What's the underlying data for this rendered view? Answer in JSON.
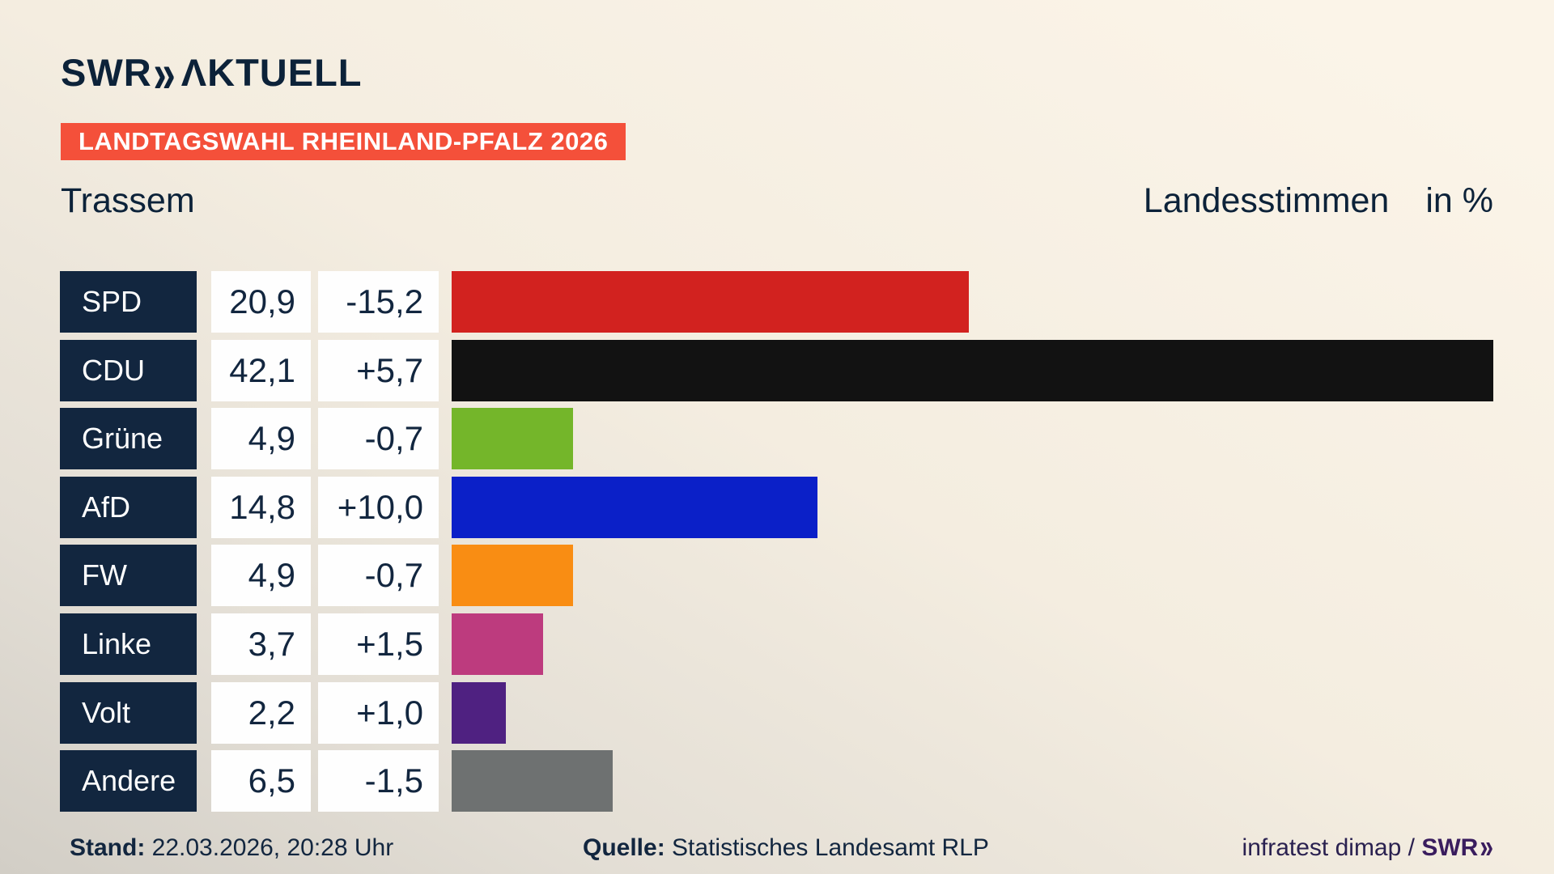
{
  "header": {
    "logo_swr": "SWR",
    "logo_chevrons": "»",
    "logo_aktuell": "ΛKTUELL",
    "badge": "LANDTAGSWAHL RHEINLAND-PFALZ 2026",
    "municipality": "Trassem",
    "measure_label": "Landesstimmen",
    "unit_label": "in %"
  },
  "chart_data": {
    "type": "bar",
    "orientation": "horizontal",
    "title": "Trassem",
    "subtitle": "Landesstimmen in %",
    "xlim": [
      0,
      42.1
    ],
    "grid": false,
    "legend": "none",
    "categories": [
      "SPD",
      "CDU",
      "Grüne",
      "AfD",
      "FW",
      "Linke",
      "Volt",
      "Andere"
    ],
    "values": [
      20.9,
      42.1,
      4.9,
      14.8,
      4.9,
      3.7,
      2.2,
      6.5
    ],
    "diffs": [
      -15.2,
      5.7,
      -0.7,
      10.0,
      -0.7,
      1.5,
      1.0,
      -1.5
    ],
    "rows": [
      {
        "party": "SPD",
        "value": 20.9,
        "value_label": "20,9",
        "diff_label": "-15,2",
        "color": "#d2221f"
      },
      {
        "party": "CDU",
        "value": 42.1,
        "value_label": "42,1",
        "diff_label": "+5,7",
        "color": "#121212"
      },
      {
        "party": "Grüne",
        "value": 4.9,
        "value_label": "4,9",
        "diff_label": "-0,7",
        "color": "#74b62a"
      },
      {
        "party": "AfD",
        "value": 14.8,
        "value_label": "14,8",
        "diff_label": "+10,0",
        "color": "#0b20c8"
      },
      {
        "party": "FW",
        "value": 4.9,
        "value_label": "4,9",
        "diff_label": "-0,7",
        "color": "#f98d13"
      },
      {
        "party": "Linke",
        "value": 3.7,
        "value_label": "3,7",
        "diff_label": "+1,5",
        "color": "#bd3b7e"
      },
      {
        "party": "Volt",
        "value": 2.2,
        "value_label": "2,2",
        "diff_label": "+1,0",
        "color": "#4f2181"
      },
      {
        "party": "Andere",
        "value": 6.5,
        "value_label": "6,5",
        "diff_label": "-1,5",
        "color": "#6e7171"
      }
    ]
  },
  "footer": {
    "stand_label": "Stand:",
    "stand_value": " 22.03.2026, 20:28 Uhr",
    "source_label": "Quelle:",
    "source_value": " Statistisches Landesamt RLP",
    "credit_text": "infratest dimap / ",
    "credit_brand_swr": "SWR",
    "credit_brand_chevrons": "»"
  },
  "colors": {
    "navy_box": "#12263f",
    "navy_text": "#0c2239",
    "badge_red": "#f4503a",
    "cell_white": "#fefefe",
    "background_light": "#faf3e7",
    "background_dark": "#d2cec6"
  }
}
